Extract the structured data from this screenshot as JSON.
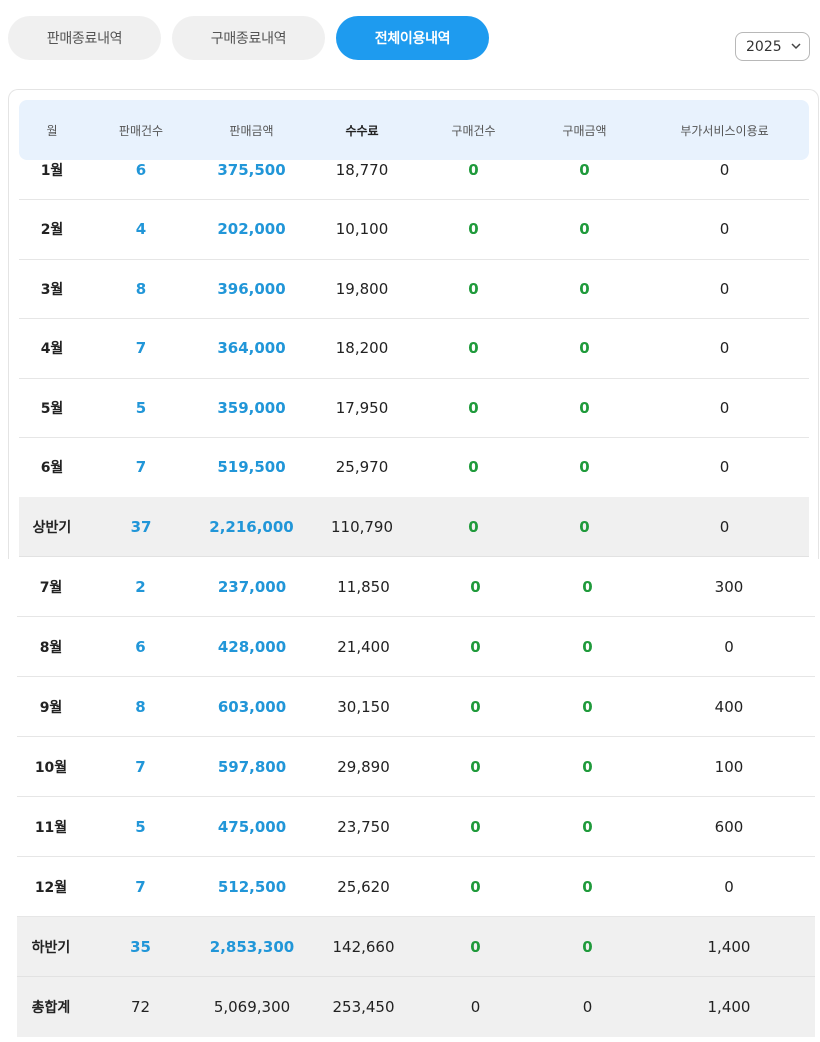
{
  "tabs": [
    {
      "label": "판매종료내역",
      "active": false
    },
    {
      "label": "구매종료내역",
      "active": false
    },
    {
      "label": "전체이용내역",
      "active": true
    }
  ],
  "year_select": {
    "value": "2025"
  },
  "table": {
    "headers": [
      "월",
      "판매건수",
      "판매금액",
      "수수료",
      "구매건수",
      "구매금액",
      "부가서비스이용료"
    ],
    "first_half": [
      [
        "1월",
        "6",
        "375,500",
        "18,770",
        "0",
        "0",
        "0"
      ],
      [
        "2월",
        "4",
        "202,000",
        "10,100",
        "0",
        "0",
        "0"
      ],
      [
        "3월",
        "8",
        "396,000",
        "19,800",
        "0",
        "0",
        "0"
      ],
      [
        "4월",
        "7",
        "364,000",
        "18,200",
        "0",
        "0",
        "0"
      ],
      [
        "5월",
        "5",
        "359,000",
        "17,950",
        "0",
        "0",
        "0"
      ],
      [
        "6월",
        "7",
        "519,500",
        "25,970",
        "0",
        "0",
        "0"
      ]
    ],
    "first_half_subtotal": [
      "상반기",
      "37",
      "2,216,000",
      "110,790",
      "0",
      "0",
      "0"
    ],
    "second_half": [
      [
        "7월",
        "2",
        "237,000",
        "11,850",
        "0",
        "0",
        "300"
      ],
      [
        "8월",
        "6",
        "428,000",
        "21,400",
        "0",
        "0",
        "0"
      ],
      [
        "9월",
        "8",
        "603,000",
        "30,150",
        "0",
        "0",
        "400"
      ],
      [
        "10월",
        "7",
        "597,800",
        "29,890",
        "0",
        "0",
        "100"
      ],
      [
        "11월",
        "5",
        "475,000",
        "23,750",
        "0",
        "0",
        "600"
      ],
      [
        "12월",
        "7",
        "512,500",
        "25,620",
        "0",
        "0",
        "0"
      ]
    ],
    "second_half_subtotal": [
      "하반기",
      "35",
      "2,853,300",
      "142,660",
      "0",
      "0",
      "1,400"
    ],
    "grand_total": [
      "총합계",
      "72",
      "5,069,300",
      "253,450",
      "0",
      "0",
      "1,400"
    ]
  },
  "colors": {
    "accent": "#1e9bef",
    "sales_blue": "#2196d8",
    "purchase_green": "#1f9a3b",
    "header_bg": "#e8f2fd",
    "subtotal_bg": "#f0f0f0"
  }
}
